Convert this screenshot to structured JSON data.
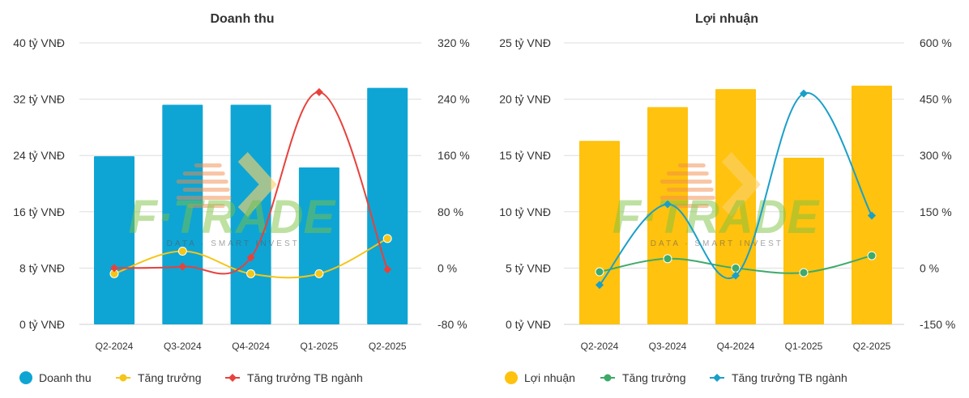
{
  "chart_data": [
    {
      "type": "bar",
      "title": "Doanh thu",
      "categories": [
        "Q2-2024",
        "Q3-2024",
        "Q4-2024",
        "Q1-2025",
        "Q2-2025"
      ],
      "left_axis": {
        "unit": "tỷ VNĐ",
        "ticks": [
          "0 tỷ VNĐ",
          "8 tỷ VNĐ",
          "16 tỷ VNĐ",
          "24 tỷ VNĐ",
          "32 tỷ VNĐ",
          "40 tỷ VNĐ"
        ],
        "ylim": [
          0,
          40
        ]
      },
      "right_axis": {
        "unit": "%",
        "ticks": [
          "-80 %",
          "0 %",
          "80 %",
          "160 %",
          "240 %",
          "320 %"
        ],
        "ylim": [
          -80,
          320
        ]
      },
      "bar_series": {
        "name": "Doanh thu",
        "color": "#0ea5d4",
        "values": [
          23.9,
          31.2,
          31.2,
          22.3,
          33.6
        ]
      },
      "line_series": [
        {
          "name": "Tăng trưởng",
          "color": "#f5c518",
          "marker": "circle",
          "values": [
            -8,
            24,
            -8,
            -8,
            42
          ]
        },
        {
          "name": "Tăng trưởng TB ngành",
          "color": "#e8413c",
          "marker": "diamond",
          "values": [
            0,
            2,
            15,
            250,
            -2
          ]
        }
      ],
      "grid": true,
      "legend_position": "bottom"
    },
    {
      "type": "bar",
      "title": "Lợi nhuận",
      "categories": [
        "Q2-2024",
        "Q3-2024",
        "Q4-2024",
        "Q1-2025",
        "Q2-2025"
      ],
      "left_axis": {
        "unit": "tỷ VNĐ",
        "ticks": [
          "0 tỷ VNĐ",
          "5 tỷ VNĐ",
          "10 tỷ VNĐ",
          "15 tỷ VNĐ",
          "20 tỷ VNĐ",
          "25 tỷ VNĐ"
        ],
        "ylim": [
          0,
          25
        ]
      },
      "right_axis": {
        "unit": "%",
        "ticks": [
          "-150 %",
          "0 %",
          "150 %",
          "300 %",
          "450 %",
          "600 %"
        ],
        "ylim": [
          -150,
          600
        ]
      },
      "bar_series": {
        "name": "Lợi nhuận",
        "color": "#ffc20e",
        "values": [
          16.3,
          19.3,
          20.9,
          14.8,
          21.2
        ]
      },
      "line_series": [
        {
          "name": "Tăng trưởng",
          "color": "#3daa6a",
          "marker": "circle",
          "values": [
            -10,
            25,
            0,
            -12,
            33
          ]
        },
        {
          "name": "Tăng trưởng TB ngành",
          "color": "#1a9fc9",
          "marker": "diamond",
          "values": [
            -45,
            170,
            -20,
            465,
            140
          ]
        }
      ],
      "grid": true,
      "legend_position": "bottom"
    }
  ]
}
